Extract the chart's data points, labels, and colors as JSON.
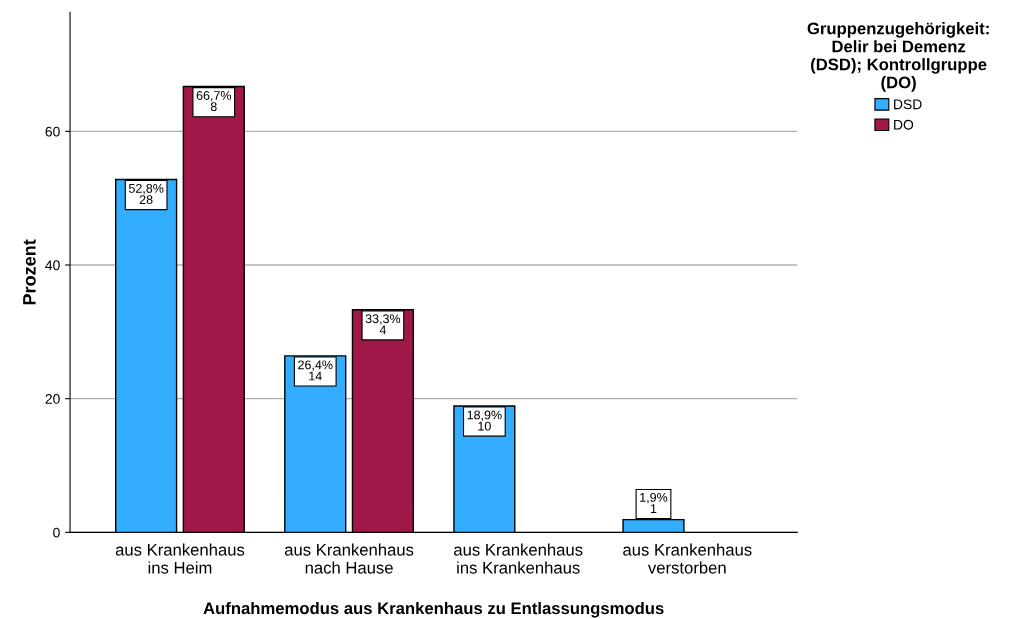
{
  "chart_data": {
    "type": "bar",
    "xlabel": "Aufnahmemodus aus Krankenhaus zu Entlassungsmodus",
    "ylabel": "Prozent",
    "legend_title": "Gruppenzugehörigkeit:\nDelir bei Demenz\n(DSD); Kontrollgruppe\n(DO)",
    "categories": [
      "aus Krankenhaus\nins Heim",
      "aus Krankenhaus\nnach Hause",
      "aus Krankenhaus\nins Krankenhaus",
      "aus Krankenhaus\nverstorben"
    ],
    "series": [
      {
        "name": "DSD",
        "color": "#33adff",
        "values": [
          52.8,
          26.4,
          18.9,
          1.9
        ],
        "value_labels": [
          "52,8%\n28",
          "26,4%\n14",
          "18,9%\n10",
          "1,9%\n1"
        ]
      },
      {
        "name": "DO",
        "color": "#a0174a",
        "values": [
          66.7,
          33.3,
          null,
          null
        ],
        "value_labels": [
          "66,7%\n8",
          "33,3%\n4",
          null,
          null
        ]
      }
    ],
    "ylim": [
      0,
      77.8
    ],
    "yticks": [
      0,
      20,
      40,
      60
    ],
    "grid": "y",
    "legend": "top right"
  }
}
